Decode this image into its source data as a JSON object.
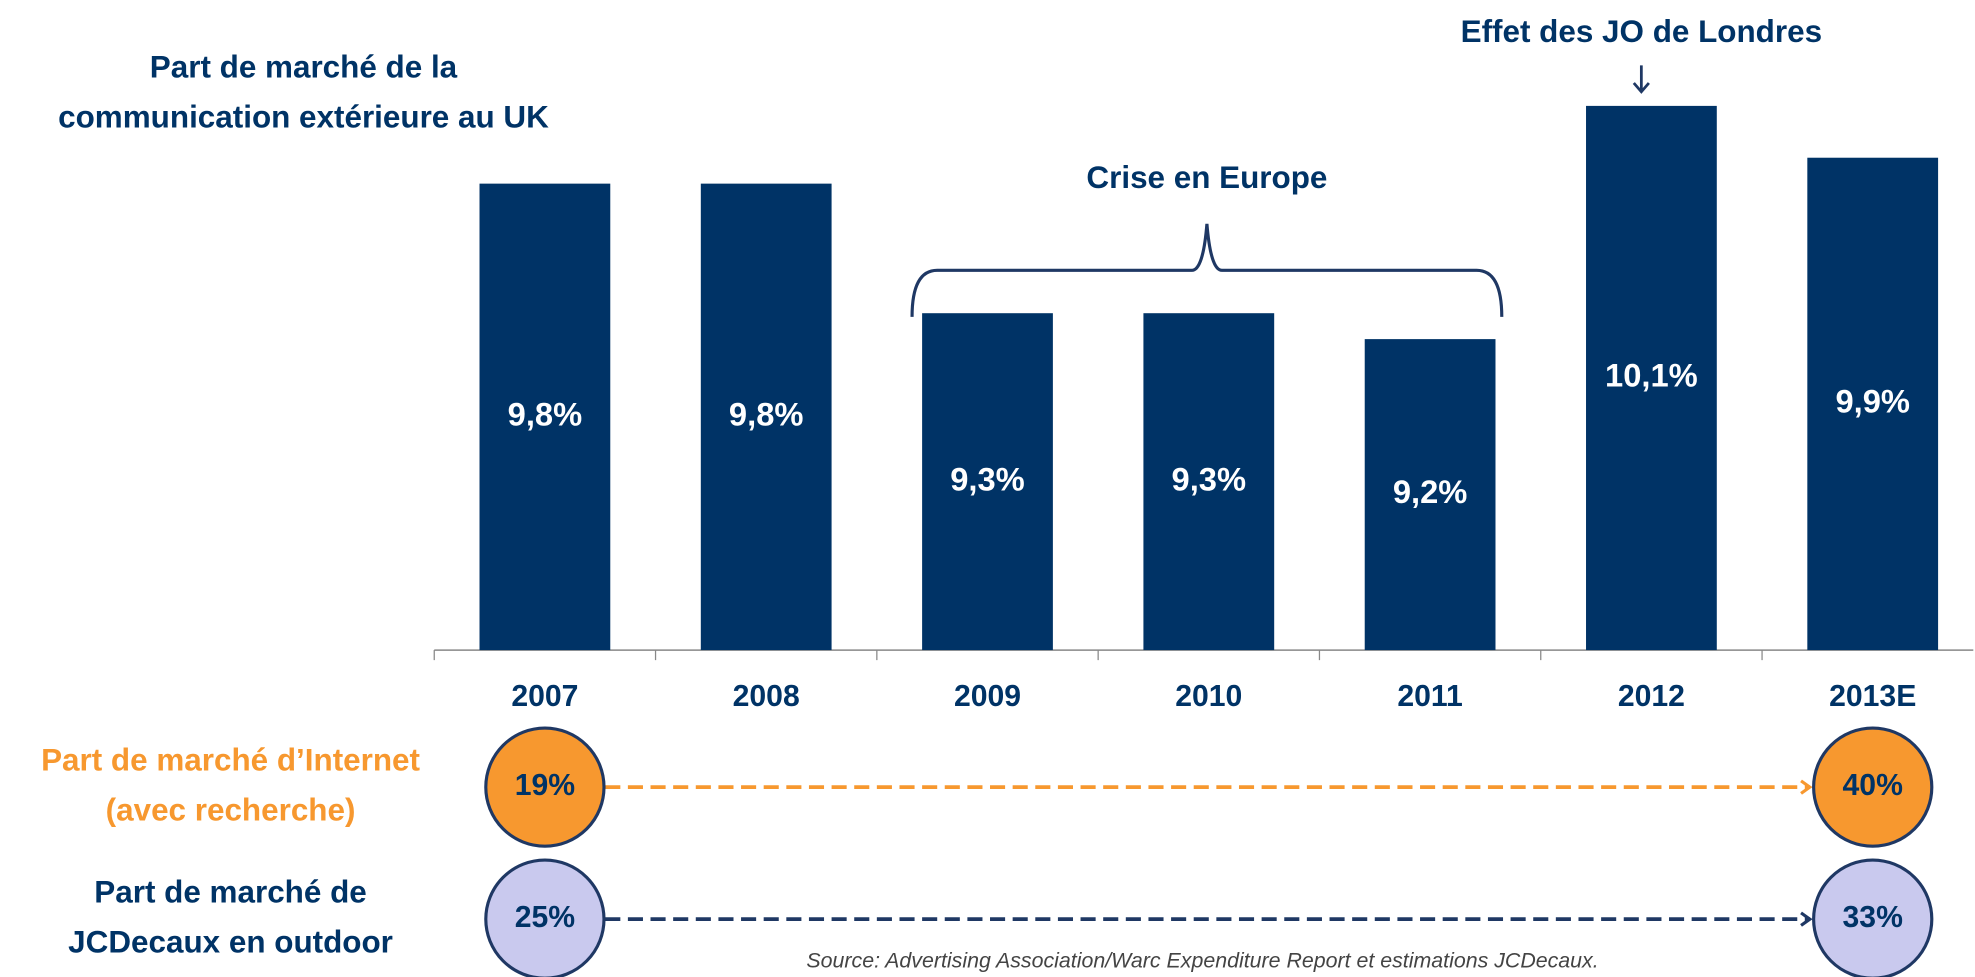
{
  "chart_data": {
    "type": "bar",
    "title": [
      "Part de marché de la",
      "communication extérieure au UK"
    ],
    "categories": [
      "2007",
      "2008",
      "2009",
      "2010",
      "2011",
      "2012",
      "2013E"
    ],
    "values": [
      9.8,
      9.8,
      9.3,
      9.3,
      9.2,
      10.1,
      9.9
    ],
    "value_labels": [
      "9,8%",
      "9,8%",
      "9,3%",
      "9,3%",
      "9,2%",
      "10,1%",
      "9,9%"
    ],
    "color": "#003366",
    "ylim": [
      8,
      10.3
    ],
    "annotations": [
      {
        "text": "Crise en Europe",
        "from": "2009",
        "to": "2011"
      },
      {
        "text": "Effet des JO de Londres",
        "at": "2012"
      }
    ],
    "comparisons": [
      {
        "label": [
          "Part de marché d’Internet",
          "(avec recherche)"
        ],
        "color": "#f7982f",
        "line_color": "#f7982f",
        "text_color": "#f7982f",
        "values": [
          19,
          40
        ],
        "value_labels": [
          "19%",
          "40%"
        ]
      },
      {
        "label": [
          "Part de marché de",
          "JCDecaux en outdoor"
        ],
        "color": "#c9c9ee",
        "line_color": "#1f3864",
        "text_color": "#003366",
        "values": [
          25,
          33
        ],
        "value_labels": [
          "25%",
          "33%"
        ]
      }
    ],
    "source": "Source: Advertising Association/Warc Expenditure Report et estimations JCDecaux."
  }
}
